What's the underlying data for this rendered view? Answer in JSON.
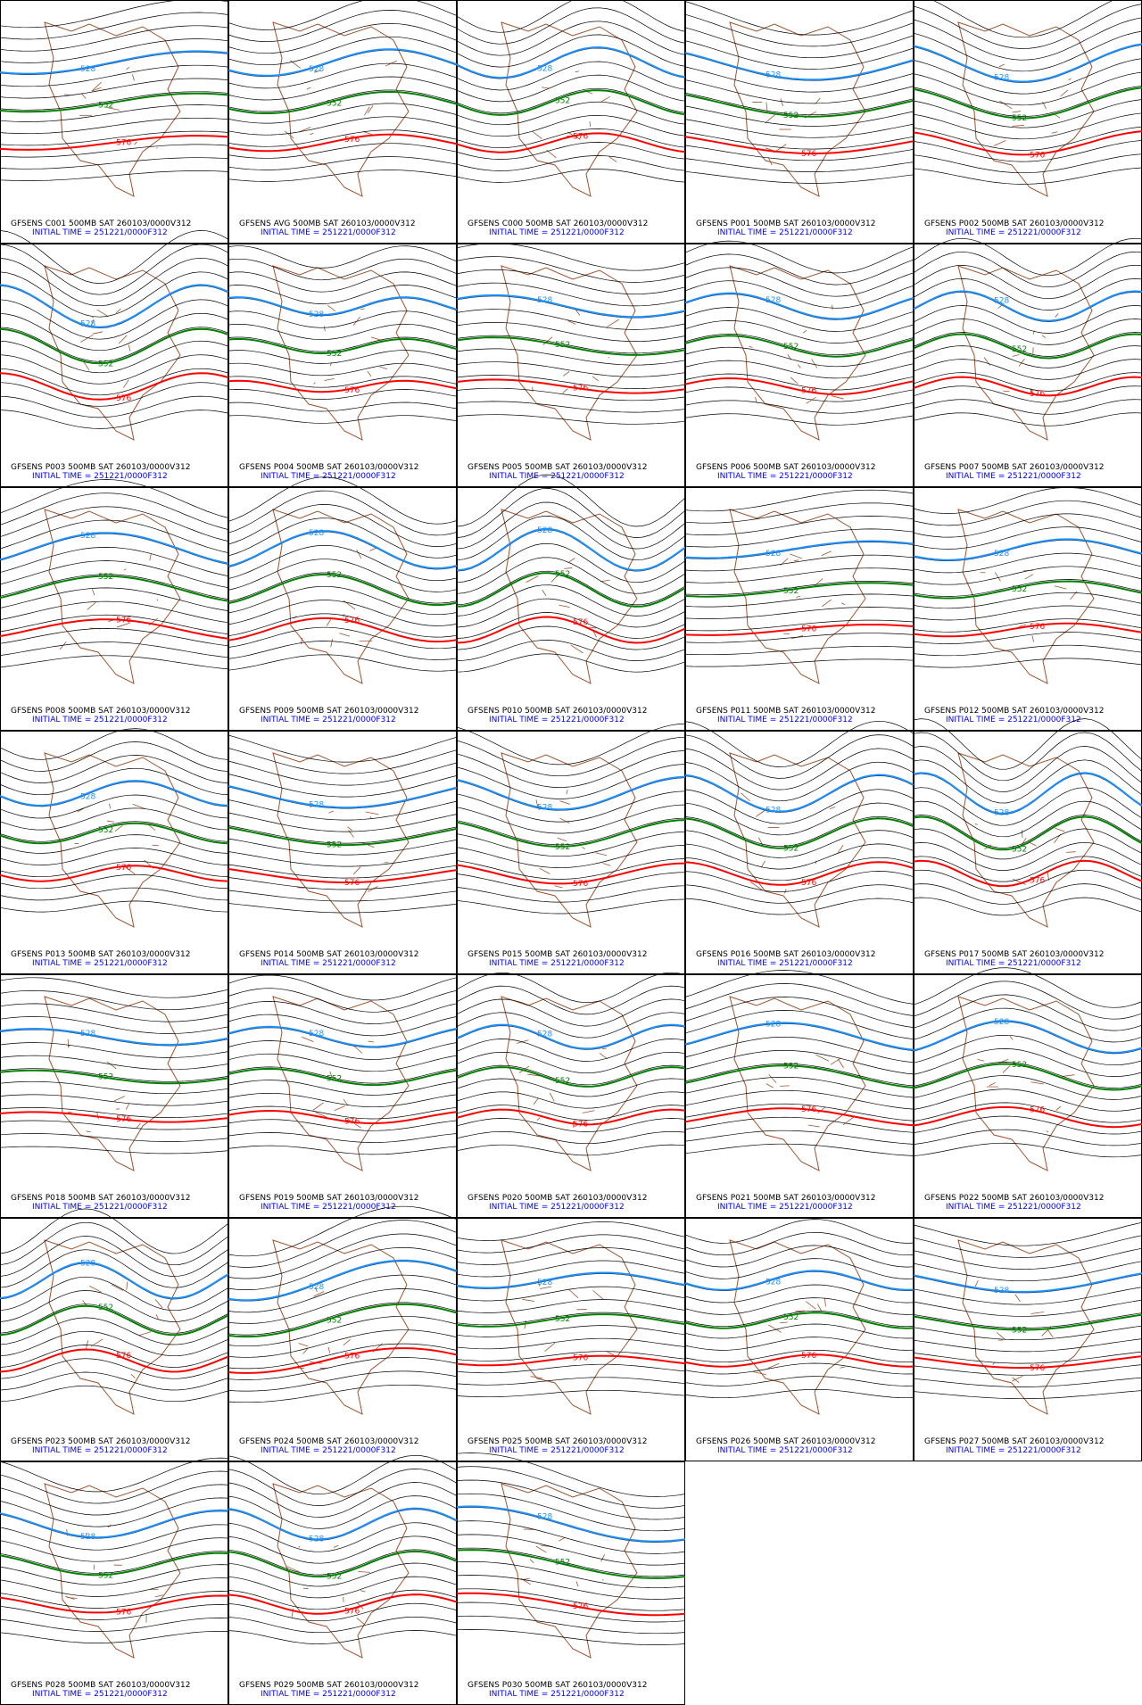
{
  "panels": [
    {
      "title": "GFSENS C001 500MB SAT 260103/0000V312",
      "init": "INITIAL TIME = 251221/0000F312"
    },
    {
      "title": "GFSENS AVG 500MB SAT 260103/0000V312",
      "init": "INITIAL TIME = 251221/0000F312"
    },
    {
      "title": "GFSENS C000 500MB SAT 260103/0000V312",
      "init": "INITIAL TIME = 251221/0000F312"
    },
    {
      "title": "GFSENS P001 500MB SAT 260103/0000V312",
      "init": "INITIAL TIME = 251221/0000F312"
    },
    {
      "title": "GFSENS P002 500MB SAT 260103/0000V312",
      "init": "INITIAL TIME = 251221/0000F312"
    },
    {
      "title": "GFSENS P003 500MB SAT 260103/0000V312",
      "init": "INITIAL TIME = 251221/0000F312"
    },
    {
      "title": "GFSENS P004 500MB SAT 260103/0000V312",
      "init": "INITIAL TIME = 251221/0000F312"
    },
    {
      "title": "GFSENS P005 500MB SAT 260103/0000V312",
      "init": "INITIAL TIME = 251221/0000F312"
    },
    {
      "title": "GFSENS P006 500MB SAT 260103/0000V312",
      "init": "INITIAL TIME = 251221/0000F312"
    },
    {
      "title": "GFSENS P007 500MB SAT 260103/0000V312",
      "init": "INITIAL TIME = 251221/0000F312"
    },
    {
      "title": "GFSENS P008 500MB SAT 260103/0000V312",
      "init": "INITIAL TIME = 251221/0000F312"
    },
    {
      "title": "GFSENS P009 500MB SAT 260103/0000V312",
      "init": "INITIAL TIME = 251221/0000F312"
    },
    {
      "title": "GFSENS P010 500MB SAT 260103/0000V312",
      "init": "INITIAL TIME = 251221/0000F312"
    },
    {
      "title": "GFSENS P011 500MB SAT 260103/0000V312",
      "init": "INITIAL TIME = 251221/0000F312"
    },
    {
      "title": "GFSENS P012 500MB SAT 260103/0000V312",
      "init": "INITIAL TIME = 251221/0000F312"
    },
    {
      "title": "GFSENS P013 500MB SAT 260103/0000V312",
      "init": "INITIAL TIME = 251221/0000F312"
    },
    {
      "title": "GFSENS P014 500MB SAT 260103/0000V312",
      "init": "INITIAL TIME = 251221/0000F312"
    },
    {
      "title": "GFSENS P015 500MB SAT 260103/0000V312",
      "init": "INITIAL TIME = 251221/0000F312"
    },
    {
      "title": "GFSENS P016 500MB SAT 260103/0000V312",
      "init": "INITIAL TIME = 251221/0000F312"
    },
    {
      "title": "GFSENS P017 500MB SAT 260103/0000V312",
      "init": "INITIAL TIME = 251221/0000F312"
    },
    {
      "title": "GFSENS P018 500MB SAT 260103/0000V312",
      "init": "INITIAL TIME = 251221/0000F312"
    },
    {
      "title": "GFSENS P019 500MB SAT 260103/0000V312",
      "init": "INITIAL TIME = 251221/0000F312"
    },
    {
      "title": "GFSENS P020 500MB SAT 260103/0000V312",
      "init": "INITIAL TIME = 251221/0000F312"
    },
    {
      "title": "GFSENS P021 500MB SAT 260103/0000V312",
      "init": "INITIAL TIME = 251221/0000F312"
    },
    {
      "title": "GFSENS P022 500MB SAT 260103/0000V312",
      "init": "INITIAL TIME = 251221/0000F312"
    },
    {
      "title": "GFSENS P023 500MB SAT 260103/0000V312",
      "init": "INITIAL TIME = 251221/0000F312"
    },
    {
      "title": "GFSENS P024 500MB SAT 260103/0000V312",
      "init": "INITIAL TIME = 251221/0000F312"
    },
    {
      "title": "GFSENS P025 500MB SAT 260103/0000V312",
      "init": "INITIAL TIME = 251221/0000F312"
    },
    {
      "title": "GFSENS P026 500MB SAT 260103/0000V312",
      "init": "INITIAL TIME = 251221/0000F312"
    },
    {
      "title": "GFSENS P027 500MB SAT 260103/0000V312",
      "init": "INITIAL TIME = 251221/0000F312"
    },
    {
      "title": "GFSENS P028 500MB SAT 260103/0000V312",
      "init": "INITIAL TIME = 251221/0000F312"
    },
    {
      "title": "GFSENS P029 500MB SAT 260103/0000V312",
      "init": "INITIAL TIME = 251221/0000F312"
    },
    {
      "title": "GFSENS P030 500MB SAT 260103/0000V312",
      "init": "INITIAL TIME = 251221/0000F312"
    }
  ],
  "contours": [
    {
      "level": 528,
      "color": "#1e90ff"
    },
    {
      "level": 552,
      "color": "#008000"
    },
    {
      "level": 576,
      "color": "#ff0000"
    }
  ]
}
